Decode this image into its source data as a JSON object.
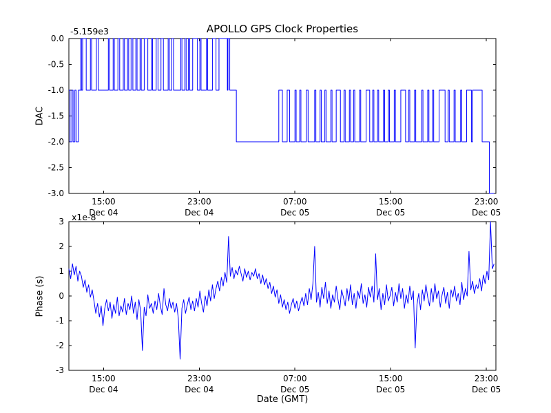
{
  "figure": {
    "background": "#ffffff",
    "axis_color": "#000000"
  },
  "chart_data": [
    {
      "type": "line",
      "title": "APOLLO GPS Clock Properties",
      "ylabel": "DAC",
      "offset_label": "-5.159e3",
      "xlim": [
        0,
        35.7
      ],
      "ylim": [
        -3,
        0
      ],
      "yticks": {
        "values": [
          0,
          -0.5,
          -1,
          -1.5,
          -2,
          -2.5,
          -3
        ],
        "labels": [
          "0.0",
          "-0.5",
          "-1.0",
          "-1.5",
          "-2.0",
          "-2.5",
          "-3.0"
        ]
      },
      "xticks": {
        "values": [
          2.9,
          10.9,
          18.9,
          26.9,
          34.9
        ],
        "labels": [
          [
            "15:00",
            "Dec 04"
          ],
          [
            "23:00",
            "Dec 04"
          ],
          [
            "07:00",
            "Dec 05"
          ],
          [
            "15:00",
            "Dec 05"
          ],
          [
            "23:00",
            "Dec 05"
          ]
        ]
      },
      "grid": false,
      "legend": null,
      "series": [
        {
          "name": "DAC",
          "style": "step",
          "color": "#0000ff",
          "points": [
            [
              0,
              -1
            ],
            [
              0.1,
              -2
            ],
            [
              0.25,
              -1
            ],
            [
              0.35,
              -2
            ],
            [
              0.5,
              -1
            ],
            [
              0.6,
              -2
            ],
            [
              0.8,
              -1
            ],
            [
              1,
              0
            ],
            [
              1.05,
              -1
            ],
            [
              1.15,
              0
            ],
            [
              1.45,
              -1
            ],
            [
              1.8,
              0
            ],
            [
              1.9,
              -1
            ],
            [
              2.3,
              0
            ],
            [
              2.45,
              -1
            ],
            [
              3.3,
              0
            ],
            [
              3.4,
              -1
            ],
            [
              3.7,
              0
            ],
            [
              3.8,
              -1
            ],
            [
              4.1,
              0
            ],
            [
              4.25,
              -1
            ],
            [
              4.55,
              0
            ],
            [
              4.65,
              -1
            ],
            [
              4.9,
              0
            ],
            [
              5,
              -1
            ],
            [
              5.2,
              0
            ],
            [
              5.35,
              -1
            ],
            [
              5.6,
              0
            ],
            [
              5.7,
              -1
            ],
            [
              5.95,
              0
            ],
            [
              6.05,
              -1
            ],
            [
              6.3,
              0
            ],
            [
              6.6,
              -1
            ],
            [
              6.9,
              0
            ],
            [
              7,
              -1
            ],
            [
              7.3,
              0
            ],
            [
              7.45,
              -1
            ],
            [
              7.7,
              0
            ],
            [
              7.9,
              -1
            ],
            [
              8.3,
              0
            ],
            [
              8.4,
              -1
            ],
            [
              8.6,
              0
            ],
            [
              8.75,
              -1
            ],
            [
              9.35,
              0
            ],
            [
              9.45,
              -1
            ],
            [
              9.7,
              0
            ],
            [
              9.8,
              -1
            ],
            [
              10,
              0
            ],
            [
              10.1,
              -1
            ],
            [
              10.35,
              0
            ],
            [
              10.75,
              -1
            ],
            [
              10.95,
              0
            ],
            [
              11.05,
              -1
            ],
            [
              11.5,
              0
            ],
            [
              11.6,
              -1
            ],
            [
              12,
              0
            ],
            [
              12.3,
              -1
            ],
            [
              12.55,
              0
            ],
            [
              13.25,
              -1
            ],
            [
              13.3,
              0
            ],
            [
              13.45,
              -1
            ],
            [
              14,
              -2
            ],
            [
              17.55,
              -1
            ],
            [
              17.85,
              -2
            ],
            [
              18.25,
              -1
            ],
            [
              18.45,
              -2
            ],
            [
              18.9,
              -1
            ],
            [
              19,
              -2
            ],
            [
              19.3,
              -1
            ],
            [
              19.4,
              -2
            ],
            [
              19.85,
              -1
            ],
            [
              20,
              -2
            ],
            [
              20.55,
              -1
            ],
            [
              20.65,
              -2
            ],
            [
              21,
              -1
            ],
            [
              21.1,
              -2
            ],
            [
              21.4,
              -1
            ],
            [
              21.5,
              -2
            ],
            [
              21.9,
              -1
            ],
            [
              22,
              -2
            ],
            [
              22.35,
              -1
            ],
            [
              22.7,
              -2
            ],
            [
              23,
              -1
            ],
            [
              23.1,
              -2
            ],
            [
              23.45,
              -1
            ],
            [
              23.55,
              -2
            ],
            [
              23.8,
              -1
            ],
            [
              23.9,
              -2
            ],
            [
              24.3,
              -1
            ],
            [
              24.4,
              -2
            ],
            [
              24.85,
              -1
            ],
            [
              25.15,
              -2
            ],
            [
              25.4,
              -1
            ],
            [
              25.5,
              -2
            ],
            [
              25.8,
              -1
            ],
            [
              25.9,
              -2
            ],
            [
              26.3,
              -1
            ],
            [
              26.4,
              -2
            ],
            [
              26.7,
              -1
            ],
            [
              26.8,
              -2
            ],
            [
              27.2,
              -1
            ],
            [
              27.3,
              -2
            ],
            [
              27.75,
              -1
            ],
            [
              28.15,
              -2
            ],
            [
              28.4,
              -1
            ],
            [
              28.5,
              -2
            ],
            [
              28.9,
              -1
            ],
            [
              29,
              -2
            ],
            [
              29.5,
              -1
            ],
            [
              29.6,
              -2
            ],
            [
              30,
              -1
            ],
            [
              30.1,
              -2
            ],
            [
              30.4,
              -1
            ],
            [
              30.5,
              -2
            ],
            [
              30.95,
              -1
            ],
            [
              31.45,
              -2
            ],
            [
              31.7,
              -1
            ],
            [
              31.8,
              -2
            ],
            [
              32.2,
              -1
            ],
            [
              32.3,
              -2
            ],
            [
              32.75,
              -1
            ],
            [
              32.85,
              -2
            ],
            [
              33.25,
              -1
            ],
            [
              33.65,
              -2
            ],
            [
              33.75,
              -1
            ],
            [
              34.55,
              -2
            ],
            [
              35.15,
              -3
            ],
            [
              35.55,
              -3
            ]
          ]
        }
      ]
    },
    {
      "type": "line",
      "ylabel": "Phase (s)",
      "multiplier_label": "x1e-8",
      "xlabel": "Date (GMT)",
      "xlim": [
        0,
        35.7
      ],
      "ylim": [
        -3,
        3
      ],
      "yticks": {
        "values": [
          3,
          2,
          1,
          0,
          -1,
          -2,
          -3
        ],
        "labels": [
          "3",
          "2",
          "1",
          "0",
          "-1",
          "-2",
          "-3"
        ]
      },
      "xticks": {
        "values": [
          2.9,
          10.9,
          18.9,
          26.9,
          34.9
        ],
        "labels": [
          [
            "15:00",
            "Dec 04"
          ],
          [
            "23:00",
            "Dec 04"
          ],
          [
            "07:00",
            "Dec 05"
          ],
          [
            "15:00",
            "Dec 05"
          ],
          [
            "23:00",
            "Dec 05"
          ]
        ]
      },
      "grid": false,
      "legend": null,
      "series": [
        {
          "name": "Phase",
          "style": "line",
          "color": "#0000ff",
          "t0": 0,
          "dt": 0.15,
          "values": [
            1.1,
            0.7,
            1.3,
            0.85,
            1.2,
            0.6,
            1.0,
            0.8,
            0.35,
            0.65,
            0.15,
            0.45,
            -0.05,
            0.25,
            -0.2,
            -0.7,
            -0.3,
            -0.85,
            -0.4,
            -1.2,
            -0.5,
            -0.15,
            -0.6,
            -0.25,
            -0.9,
            -0.35,
            -0.7,
            -0.05,
            -0.8,
            -0.4,
            -0.65,
            -0.1,
            -0.75,
            -0.3,
            -0.55,
            0.0,
            -0.7,
            -0.25,
            -0.95,
            -0.15,
            -0.6,
            -2.2,
            -0.45,
            -0.8,
            0.05,
            -0.5,
            -0.3,
            -0.7,
            -0.2,
            -0.55,
            0.1,
            -0.4,
            -0.75,
            0.3,
            -0.35,
            -0.6,
            -0.1,
            -0.5,
            -0.25,
            -0.65,
            -0.3,
            -0.9,
            -2.55,
            -0.5,
            -0.15,
            -0.7,
            -0.35,
            -0.05,
            -0.55,
            -0.2,
            -0.6,
            -0.1,
            -0.45,
            0.2,
            -0.3,
            -0.65,
            0.0,
            -0.4,
            0.25,
            -0.2,
            0.45,
            -0.1,
            0.3,
            0.6,
            0.2,
            0.75,
            0.4,
            0.95,
            0.55,
            2.4,
            0.8,
            1.15,
            0.7,
            1.05,
            0.85,
            1.2,
            0.9,
            0.6,
            1.1,
            0.75,
            1.0,
            0.65,
            0.95,
            0.8,
            1.1,
            0.7,
            0.9,
            0.5,
            0.85,
            0.45,
            0.7,
            0.3,
            0.55,
            0.1,
            0.4,
            -0.05,
            0.25,
            -0.3,
            0.05,
            -0.45,
            -0.15,
            -0.55,
            -0.25,
            -0.7,
            -0.35,
            -0.1,
            -0.5,
            -0.2,
            -0.6,
            -0.3,
            -0.05,
            -0.4,
            0.1,
            -0.35,
            0.3,
            -0.15,
            0.5,
            2.0,
            -0.25,
            0.15,
            -0.45,
            0.35,
            -0.1,
            0.55,
            -0.3,
            0.2,
            -0.5,
            0.05,
            -0.25,
            0.4,
            -0.15,
            -0.55,
            0.25,
            -0.05,
            -0.4,
            0.3,
            -0.2,
            0.45,
            -0.35,
            0.1,
            -0.5,
            0.2,
            -0.1,
            0.5,
            -0.3,
            0.05,
            -0.45,
            0.35,
            -0.05,
            0.4,
            -0.25,
            1.7,
            -0.15,
            0.3,
            -0.55,
            0.1,
            -0.35,
            0.45,
            -0.2,
            0.0,
            0.35,
            -0.4,
            0.15,
            -0.25,
            0.5,
            -0.1,
            0.3,
            -0.5,
            0.05,
            -0.3,
            0.4,
            -0.15,
            0.2,
            -2.1,
            -0.35,
            0.1,
            -0.55,
            0.25,
            -0.2,
            0.45,
            -0.05,
            -0.4,
            0.3,
            -0.25,
            0.5,
            -0.1,
            0.2,
            -0.45,
            0.05,
            0.35,
            -0.3,
            0.15,
            -0.5,
            0.25,
            -0.05,
            0.4,
            -0.2,
            0.1,
            -0.35,
            0.55,
            -0.15,
            0.3,
            0.0,
            1.8,
            0.25,
            0.6,
            0.1,
            0.45,
            0.3,
            0.7,
            0.2,
            0.85,
            0.5,
            1.0,
            0.65,
            3.0,
            1.1,
            1.3
          ]
        }
      ]
    }
  ]
}
